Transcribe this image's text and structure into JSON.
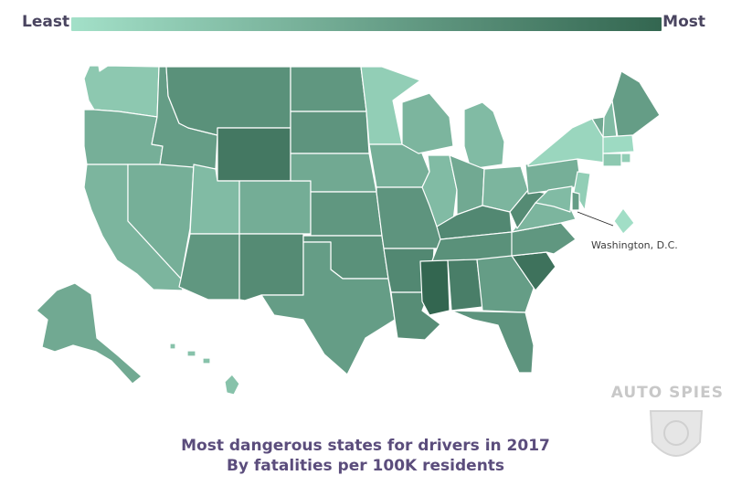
{
  "legend": {
    "least": "Least",
    "most": "Most",
    "color_low": "#a3e0c8",
    "color_high": "#336650"
  },
  "annotation": {
    "dc": "Washington, D.C."
  },
  "caption": {
    "line1": "Most dangerous states for drivers in 2017",
    "line2": "By fatalities per 100K residents"
  },
  "watermark": {
    "text": "AUTO SPIES"
  },
  "map": {
    "type": "choropleth",
    "metric": "fatalities per 100K residents (relative shading, 0 = least, 1 = most)",
    "regions": [
      {
        "id": "WA",
        "name": "Washington",
        "shade": 0.2
      },
      {
        "id": "OR",
        "name": "Oregon",
        "shade": 0.4
      },
      {
        "id": "CA",
        "name": "California",
        "shade": 0.35
      },
      {
        "id": "NV",
        "name": "Nevada",
        "shade": 0.4
      },
      {
        "id": "ID",
        "name": "Idaho",
        "shade": 0.55
      },
      {
        "id": "MT",
        "name": "Montana",
        "shade": 0.65
      },
      {
        "id": "WY",
        "name": "Wyoming",
        "shade": 0.85
      },
      {
        "id": "UT",
        "name": "Utah",
        "shade": 0.3
      },
      {
        "id": "AZ",
        "name": "Arizona",
        "shade": 0.6
      },
      {
        "id": "CO",
        "name": "Colorado",
        "shade": 0.42
      },
      {
        "id": "NM",
        "name": "New Mexico",
        "shade": 0.7
      },
      {
        "id": "ND",
        "name": "North Dakota",
        "shade": 0.6
      },
      {
        "id": "SD",
        "name": "South Dakota",
        "shade": 0.62
      },
      {
        "id": "NE",
        "name": "Nebraska",
        "shade": 0.45
      },
      {
        "id": "KS",
        "name": "Kansas",
        "shade": 0.6
      },
      {
        "id": "OK",
        "name": "Oklahoma",
        "shade": 0.65
      },
      {
        "id": "TX",
        "name": "Texas",
        "shade": 0.55
      },
      {
        "id": "MN",
        "name": "Minnesota",
        "shade": 0.15
      },
      {
        "id": "IA",
        "name": "Iowa",
        "shade": 0.4
      },
      {
        "id": "MO",
        "name": "Missouri",
        "shade": 0.62
      },
      {
        "id": "AR",
        "name": "Arkansas",
        "shade": 0.72
      },
      {
        "id": "LA",
        "name": "Louisiana",
        "shade": 0.68
      },
      {
        "id": "WI",
        "name": "Wisconsin",
        "shade": 0.35
      },
      {
        "id": "IL",
        "name": "Illinois",
        "shade": 0.3
      },
      {
        "id": "MI",
        "name": "Michigan",
        "shade": 0.3
      },
      {
        "id": "IN",
        "name": "Indiana",
        "shade": 0.45
      },
      {
        "id": "OH",
        "name": "Ohio",
        "shade": 0.35
      },
      {
        "id": "KY",
        "name": "Kentucky",
        "shade": 0.72
      },
      {
        "id": "TN",
        "name": "Tennessee",
        "shade": 0.65
      },
      {
        "id": "MS",
        "name": "Mississippi",
        "shade": 1.0
      },
      {
        "id": "AL",
        "name": "Alabama",
        "shade": 0.8
      },
      {
        "id": "GA",
        "name": "Georgia",
        "shade": 0.55
      },
      {
        "id": "FL",
        "name": "Florida",
        "shade": 0.62
      },
      {
        "id": "SC",
        "name": "South Carolina",
        "shade": 0.9
      },
      {
        "id": "NC",
        "name": "North Carolina",
        "shade": 0.6
      },
      {
        "id": "VA",
        "name": "Virginia",
        "shade": 0.35
      },
      {
        "id": "WV",
        "name": "West Virginia",
        "shade": 0.7
      },
      {
        "id": "PA",
        "name": "Pennsylvania",
        "shade": 0.4
      },
      {
        "id": "NY",
        "name": "New York",
        "shade": 0.08
      },
      {
        "id": "VT",
        "name": "Vermont",
        "shade": 0.45
      },
      {
        "id": "NH",
        "name": "New Hampshire",
        "shade": 0.3
      },
      {
        "id": "ME",
        "name": "Maine",
        "shade": 0.55
      },
      {
        "id": "MA",
        "name": "Massachusetts",
        "shade": 0.05
      },
      {
        "id": "RI",
        "name": "Rhode Island",
        "shade": 0.15
      },
      {
        "id": "CT",
        "name": "Connecticut",
        "shade": 0.2
      },
      {
        "id": "NJ",
        "name": "New Jersey",
        "shade": 0.15
      },
      {
        "id": "DE",
        "name": "Delaware",
        "shade": 0.55
      },
      {
        "id": "MD",
        "name": "Maryland",
        "shade": 0.3
      },
      {
        "id": "DC",
        "name": "Washington, D.C.",
        "shade": 0.02
      },
      {
        "id": "AK",
        "name": "Alaska",
        "shade": 0.45
      },
      {
        "id": "HI",
        "name": "Hawaii",
        "shade": 0.25
      }
    ]
  }
}
